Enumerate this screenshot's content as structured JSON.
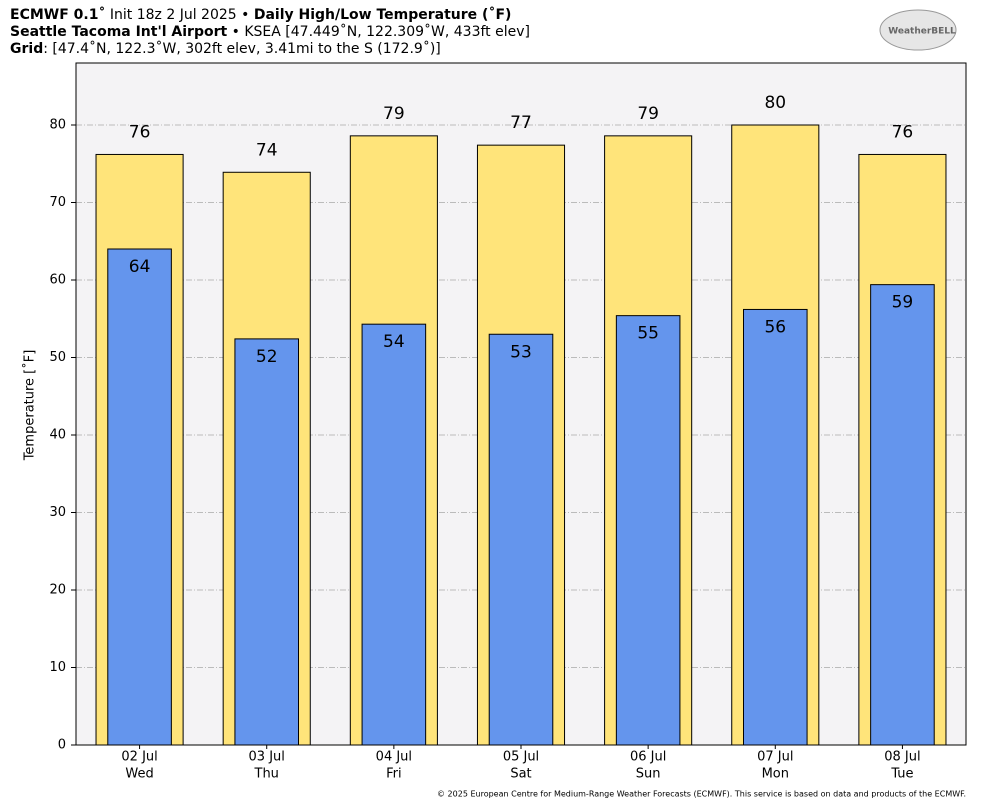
{
  "header": {
    "line1": [
      {
        "text": "ECMWF 0.1˚",
        "bold": true
      },
      {
        "text": " Init 18z 2 Jul 2025 • ",
        "bold": false
      },
      {
        "text": "Daily High/Low Temperature (˚F)",
        "bold": true
      }
    ],
    "line2": [
      {
        "text": "Seattle Tacoma Int'l Airport",
        "bold": true
      },
      {
        "text": " • KSEA [47.449˚N, 122.309˚W, 433ft elev]",
        "bold": false
      }
    ],
    "line3": [
      {
        "text": "Grid",
        "bold": true
      },
      {
        "text": ": [47.4˚N, 122.3˚W, 302ft elev, 3.41mi to the S (172.9˚)]",
        "bold": false
      }
    ],
    "logo": "WeatherBELL"
  },
  "chart_data": {
    "type": "bar",
    "ylabel": "Temperature [˚F]",
    "categories": [
      "02 Jul",
      "03 Jul",
      "04 Jul",
      "05 Jul",
      "06 Jul",
      "07 Jul",
      "08 Jul"
    ],
    "weekdays": [
      "Wed",
      "Thu",
      "Fri",
      "Sat",
      "Sun",
      "Mon",
      "Tue"
    ],
    "series": [
      {
        "color": "#ffe47a",
        "values": [
          76.2,
          73.9,
          78.6,
          77.4,
          78.6,
          80.0,
          76.2
        ],
        "value_labels": [
          "76",
          "74",
          "79",
          "77",
          "79",
          "80",
          "76"
        ]
      },
      {
        "color": "#6495ed",
        "values": [
          64.0,
          52.4,
          54.3,
          53.0,
          55.4,
          56.2,
          59.4
        ],
        "value_labels": [
          "64",
          "52",
          "54",
          "53",
          "55",
          "56",
          "59"
        ]
      }
    ],
    "ylim": [
      0,
      88
    ],
    "yticks": [
      0,
      10,
      20,
      30,
      40,
      50,
      60,
      70,
      80
    ],
    "grid": true
  },
  "footer": "© 2025 European Centre for Medium-Range Weather Forecasts (ECMWF). This service is based on data and products of the ECMWF."
}
